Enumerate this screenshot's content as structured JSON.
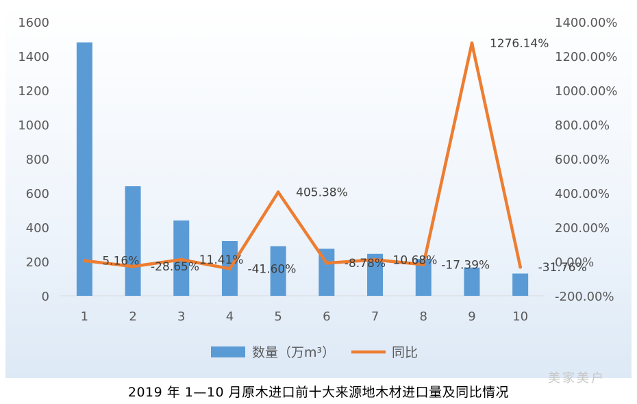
{
  "caption": "2019 年 1—10 月原木进口前十大来源地木材进口量及同比情况",
  "watermark": "美家美户",
  "colors": {
    "bar": "#5b9bd5",
    "line": "#ed7d31",
    "axis": "#d9d9d9",
    "text": "#595959"
  },
  "chart_data": {
    "type": "bar",
    "categories": [
      "1",
      "2",
      "3",
      "4",
      "5",
      "6",
      "7",
      "8",
      "9",
      "10"
    ],
    "series": [
      {
        "name": "数量（万m³）",
        "type": "bar",
        "axis": "left",
        "values": [
          1480,
          640,
          440,
          320,
          290,
          275,
          245,
          215,
          165,
          130
        ]
      },
      {
        "name": "同比",
        "type": "line",
        "axis": "right",
        "values": [
          5.16,
          -28.65,
          11.41,
          -41.6,
          405.38,
          -8.78,
          10.68,
          -17.39,
          1276.14,
          -31.76
        ],
        "labels": [
          "5.16%",
          "-28.65%",
          "11.41%",
          "-41.60%",
          "405.38%",
          "-8.78%",
          "10.68%",
          "-17.39%",
          "1276.14%",
          "-31.76%"
        ]
      }
    ],
    "y_left": {
      "range": [
        0,
        1600
      ],
      "ticks": [
        "0",
        "200",
        "400",
        "600",
        "800",
        "1000",
        "1200",
        "1400",
        "1600"
      ]
    },
    "y_right": {
      "range": [
        -200,
        1400
      ],
      "ticks": [
        "-200.00%",
        "0.00%",
        "200.00%",
        "400.00%",
        "600.00%",
        "800.00%",
        "1000.00%",
        "1200.00%",
        "1400.00%"
      ]
    },
    "grid": false,
    "legend": "bottom"
  }
}
